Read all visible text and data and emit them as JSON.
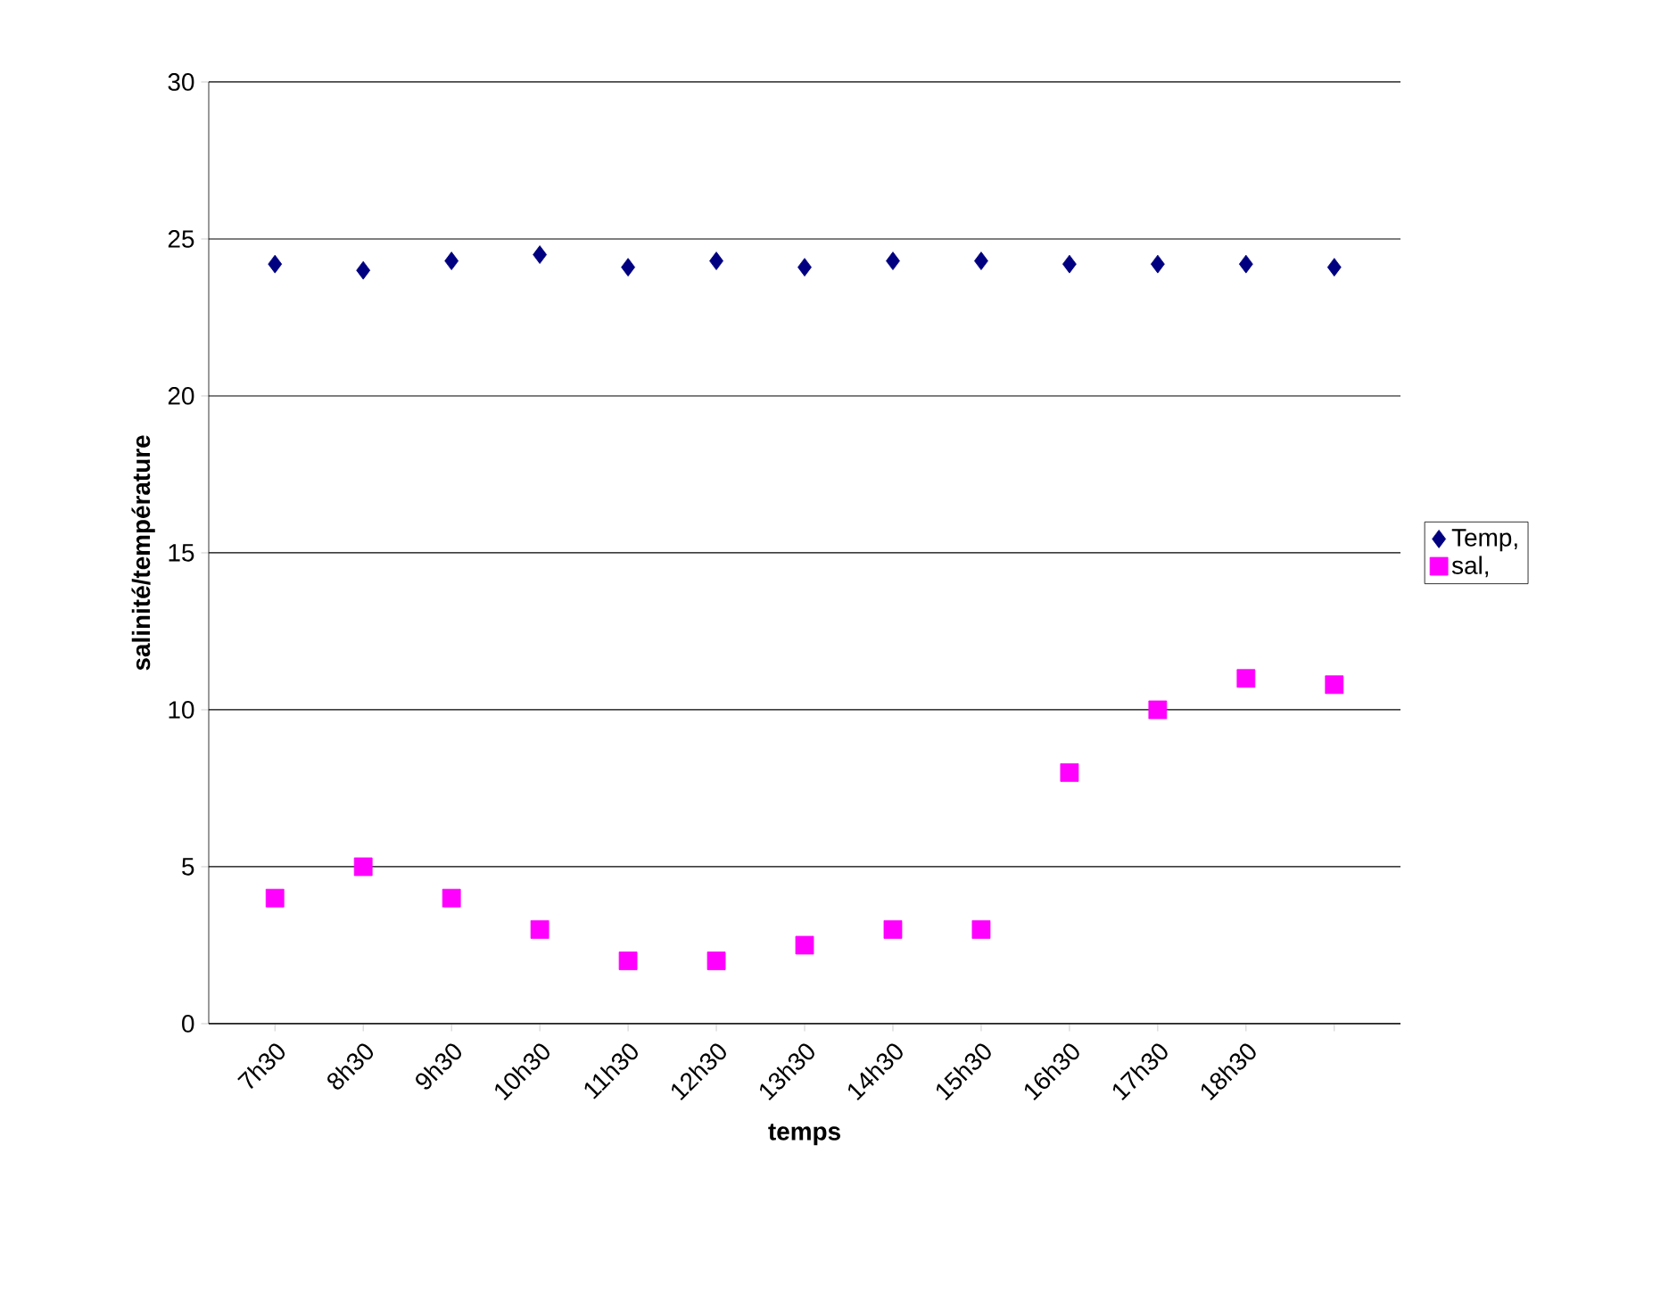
{
  "chart_data": {
    "type": "scatter",
    "xlabel": "temps",
    "ylabel": "salinité/température",
    "categories": [
      "7h30",
      "8h30",
      "9h30",
      "10h30",
      "11h30",
      "12h30",
      "13h30",
      "14h30",
      "15h30",
      "16h30",
      "17h30",
      "18h30",
      null
    ],
    "series": [
      {
        "name": "Temp,",
        "color": "#000080",
        "marker": "diamond",
        "values": [
          24.2,
          24.0,
          24.3,
          24.5,
          24.1,
          24.3,
          24.1,
          24.3,
          24.3,
          24.2,
          24.2,
          24.2,
          24.1
        ]
      },
      {
        "name": "sal,",
        "color": "#ff00ff",
        "marker": "square",
        "values": [
          4,
          5,
          4,
          3,
          2,
          2,
          2.5,
          3,
          3,
          8,
          10,
          11,
          10.8
        ]
      }
    ],
    "ylim": [
      0,
      30
    ],
    "yticks": [
      0,
      5,
      10,
      15,
      20,
      25,
      30
    ],
    "grid": "y",
    "legend": "right"
  }
}
